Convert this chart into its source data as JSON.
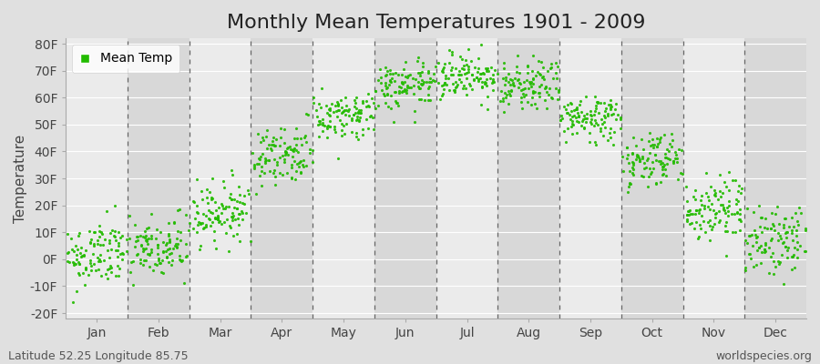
{
  "title": "Monthly Mean Temperatures 1901 - 2009",
  "ylabel": "Temperature",
  "xlabel_labels": [
    "Jan",
    "Feb",
    "Mar",
    "Apr",
    "May",
    "Jun",
    "Jul",
    "Aug",
    "Sep",
    "Oct",
    "Nov",
    "Dec"
  ],
  "ytick_labels": [
    "-20F",
    "-10F",
    "0F",
    "10F",
    "20F",
    "30F",
    "40F",
    "50F",
    "60F",
    "70F",
    "80F"
  ],
  "ytick_values": [
    -20,
    -10,
    0,
    10,
    20,
    30,
    40,
    50,
    60,
    70,
    80
  ],
  "ylim": [
    -22,
    82
  ],
  "dot_color": "#22bb00",
  "bg_color": "#e0e0e0",
  "plot_bg_color_light": "#ebebeb",
  "plot_bg_color_dark": "#d8d8d8",
  "grid_color": "#ffffff",
  "dashed_color": "#666666",
  "legend_label": "Mean Temp",
  "footer_left": "Latitude 52.25 Longitude 85.75",
  "footer_right": "worldspecies.org",
  "title_fontsize": 16,
  "axis_fontsize": 11,
  "tick_fontsize": 10,
  "footer_fontsize": 9,
  "n_years": 109,
  "monthly_mean_temps_C": [
    -17.5,
    -16.2,
    -8.5,
    3.5,
    11.5,
    17.5,
    20.0,
    17.5,
    11.0,
    2.5,
    -8.0,
    -14.5
  ],
  "monthly_trend_C_per_year": [
    0.012,
    0.01,
    0.01,
    0.008,
    0.006,
    0.005,
    0.004,
    0.005,
    0.006,
    0.008,
    0.01,
    0.012
  ],
  "monthly_spreads_C": [
    3.5,
    3.5,
    3.0,
    3.0,
    2.5,
    2.5,
    2.5,
    2.5,
    2.5,
    3.0,
    3.5,
    3.5
  ]
}
